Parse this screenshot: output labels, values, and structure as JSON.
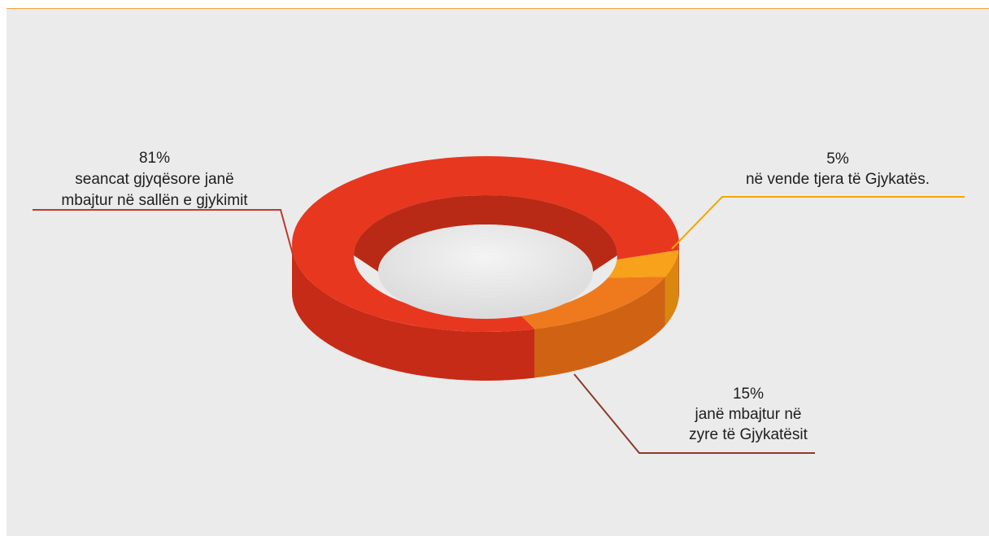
{
  "chart_data": {
    "type": "pie",
    "variant": "donut-3d",
    "title": "",
    "slices": [
      {
        "value": 81,
        "percent_label": "81%",
        "text_lines": [
          "seancat gjyqësore janë",
          "mbajtur në sallën e gjykimit"
        ],
        "color": "#e8371f",
        "side_color": "#c62b17",
        "leader_color": "#c0392b"
      },
      {
        "value": 15,
        "percent_label": "15%",
        "text_lines": [
          "janë mbajtur në",
          "zyre të Gjykatësit"
        ],
        "color": "#ef7a1e",
        "side_color": "#d06313",
        "leader_color": "#8b3a2a"
      },
      {
        "value": 5,
        "percent_label": "5%",
        "text_lines": [
          "në vende tjera të Gjykatës."
        ],
        "color": "#f7a21a",
        "side_color": "#d9870f",
        "leader_color": "#f0a800"
      }
    ],
    "legend": "none",
    "grid": false
  }
}
